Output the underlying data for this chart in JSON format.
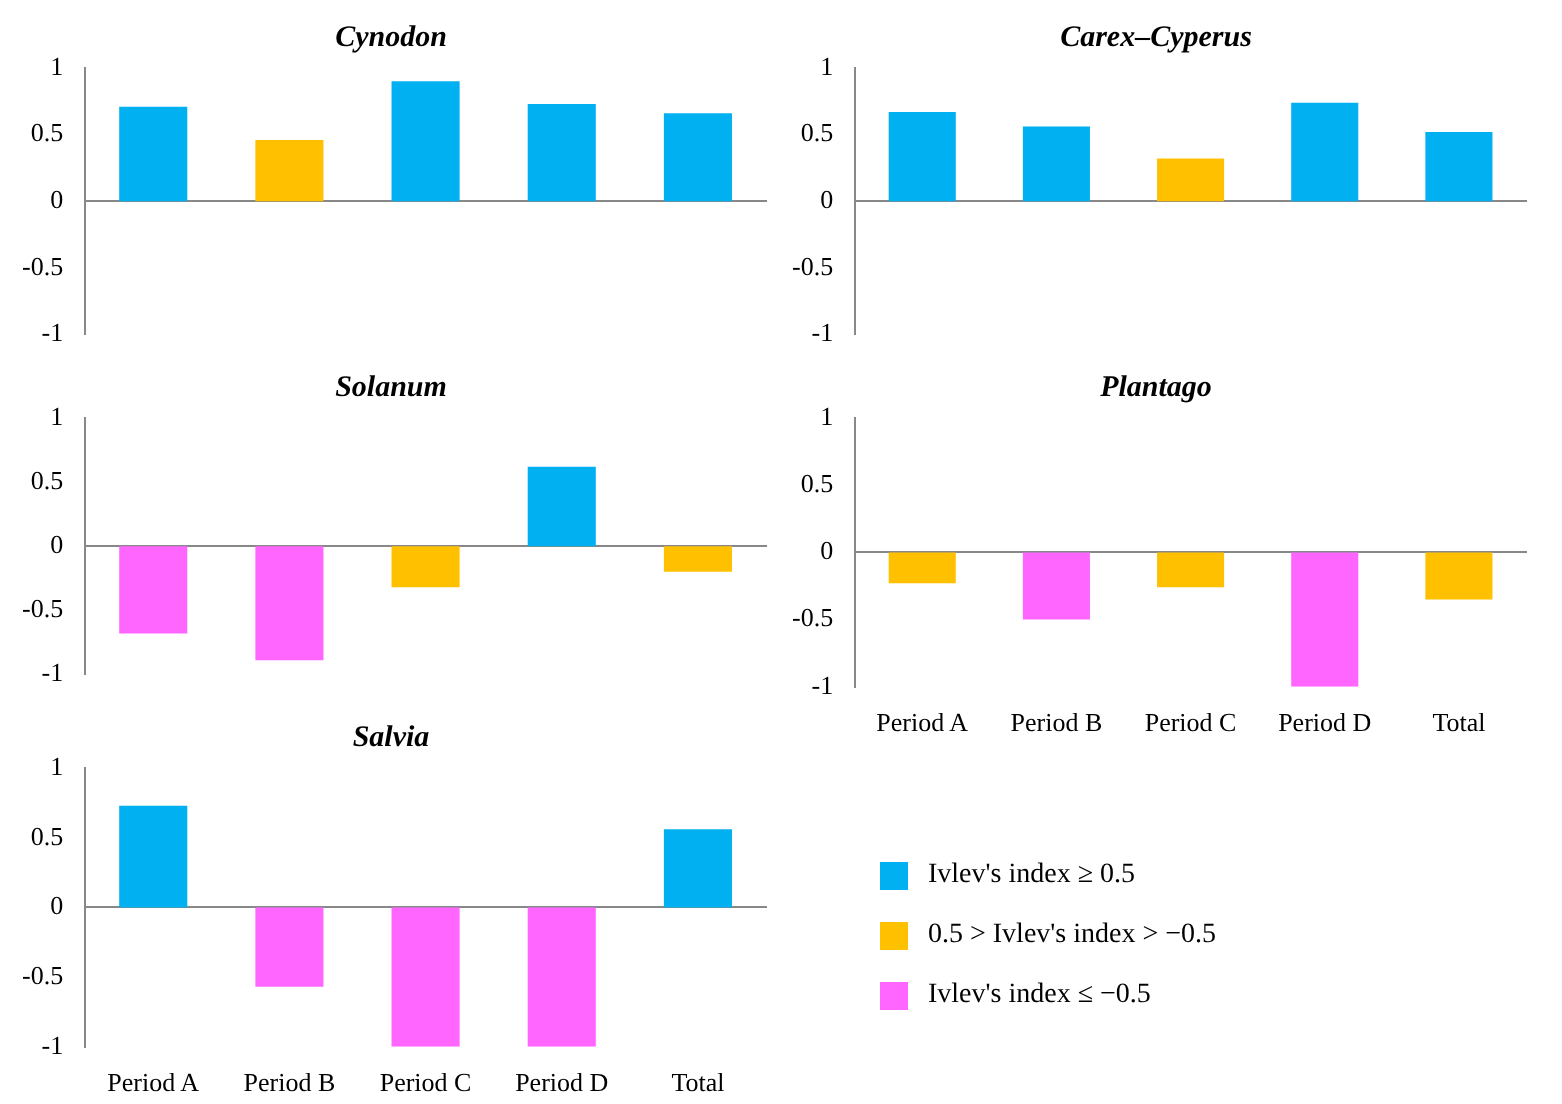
{
  "chart_data": [
    {
      "type": "bar",
      "title": "Cynodon",
      "categories": [
        null,
        null,
        null,
        null,
        null
      ],
      "stacked": true,
      "ylim": [
        -1,
        1
      ],
      "yticks": [
        -1,
        -0.5,
        0,
        0.5,
        1
      ],
      "tick_labels": "y",
      "series": [
        {
          "color": "#00b0f0",
          "values": [
            0.71,
            null,
            0.9,
            0.73,
            0.66
          ]
        },
        {
          "color": "#ffc000",
          "values": [
            null,
            0.46,
            null,
            null,
            null
          ]
        },
        {
          "color": "#ff66ff",
          "values": [
            null,
            null,
            null,
            null,
            null
          ]
        }
      ]
    },
    {
      "type": "bar",
      "title": "Carex–Cyperus",
      "categories": [
        null,
        null,
        null,
        null,
        null
      ],
      "stacked": true,
      "ylim": [
        -1,
        1
      ],
      "yticks": [
        -1,
        -0.5,
        0,
        0.5,
        1
      ],
      "tick_labels": "y",
      "series": [
        {
          "color": "#00b0f0",
          "values": [
            0.67,
            0.56,
            null,
            0.74,
            0.52
          ]
        },
        {
          "color": "#ffc000",
          "values": [
            null,
            null,
            0.32,
            null,
            null
          ]
        },
        {
          "color": "#ff66ff",
          "values": [
            null,
            null,
            null,
            null,
            null
          ]
        }
      ]
    },
    {
      "type": "bar",
      "title": "Solanum",
      "categories": [
        null,
        null,
        null,
        null,
        null
      ],
      "stacked": true,
      "ylim": [
        -1,
        1
      ],
      "yticks": [
        -1,
        -0.5,
        0,
        0.5,
        1
      ],
      "tick_labels": "y",
      "series": [
        {
          "color": "#00b0f0",
          "values": [
            null,
            null,
            null,
            0.62,
            null
          ]
        },
        {
          "color": "#ffc000",
          "values": [
            null,
            null,
            -0.32,
            null,
            -0.2
          ]
        },
        {
          "color": "#ff66ff",
          "values": [
            -0.68,
            -0.89,
            null,
            null,
            null
          ]
        }
      ]
    },
    {
      "type": "bar",
      "title": "Plantago",
      "categories": [
        "Period A",
        "Period B",
        "Period C",
        "Period D",
        "Total"
      ],
      "stacked": true,
      "ylim": [
        -1,
        1
      ],
      "yticks": [
        -1,
        -0.5,
        0,
        0.5,
        1
      ],
      "series": [
        {
          "color": "#00b0f0",
          "values": [
            null,
            null,
            null,
            null,
            null
          ]
        },
        {
          "color": "#ffc000",
          "values": [
            -0.23,
            null,
            -0.26,
            null,
            -0.35
          ]
        },
        {
          "color": "#ff66ff",
          "values": [
            null,
            -0.5,
            null,
            -1,
            null
          ]
        }
      ]
    },
    {
      "type": "bar",
      "title": "Salvia",
      "categories": [
        "Period A",
        "Period B",
        "Period C",
        "Period D",
        "Total"
      ],
      "stacked": true,
      "ylim": [
        -1,
        1
      ],
      "yticks": [
        -1,
        -0.5,
        0,
        0.5,
        1
      ],
      "legend": "bottom right",
      "series": [
        {
          "name": "Ivlev's index ≥ 0.5",
          "color": "#00b0f0",
          "values": [
            0.73,
            null,
            null,
            null,
            0.56
          ]
        },
        {
          "name": "0.5 > Ivlev's index > −0.5",
          "color": "#ffc000",
          "values": [
            null,
            null,
            null,
            null,
            null
          ]
        },
        {
          "name": "Ivlev's index ≤ −0.5",
          "color": "#ff66ff",
          "values": [
            null,
            -0.57,
            -1,
            -1,
            null
          ]
        }
      ]
    }
  ]
}
